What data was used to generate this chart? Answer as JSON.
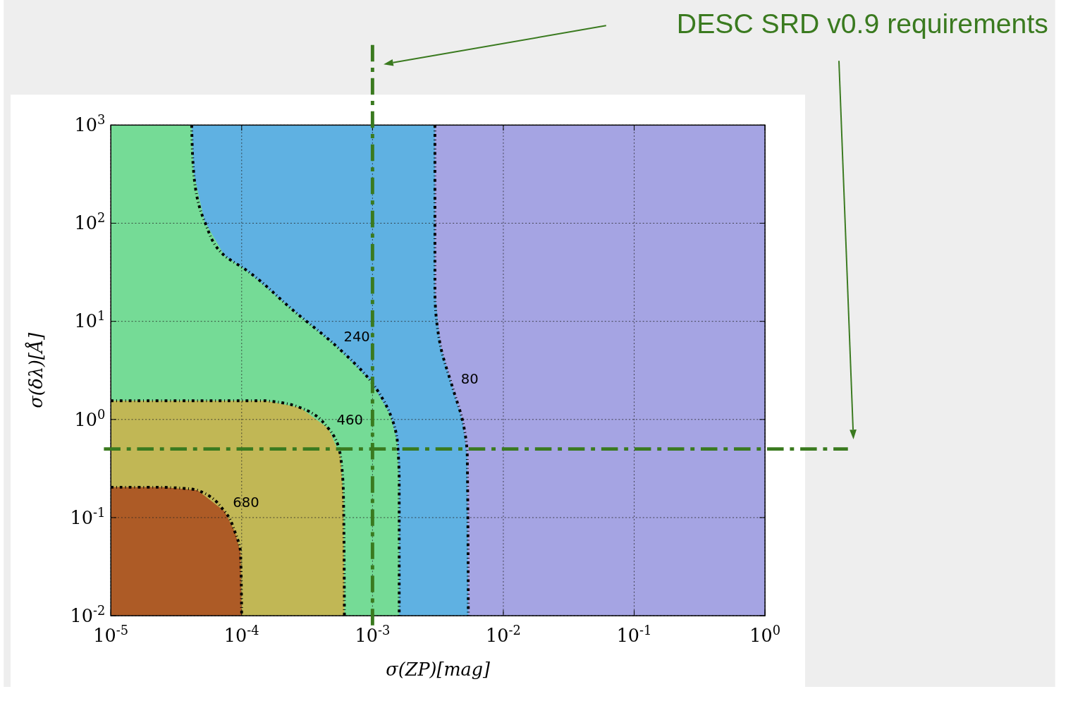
{
  "chart_data": {
    "type": "line",
    "xlabel": "σ(ZP)[mag]",
    "ylabel": "σ(δλ)[Å]",
    "log": "xy",
    "grid": true,
    "line_style": "dotted",
    "marker": "none",
    "xlim": [
      1e-05,
      1
    ],
    "ylim": [
      0.01,
      1000
    ],
    "xticks": [
      {
        "value": 1e-05,
        "label": "10$^{-5}$"
      },
      {
        "value": 0.0001,
        "label": "10$^{-4}$"
      },
      {
        "value": 0.001,
        "label": "10$^{-3}$"
      },
      {
        "value": 0.01,
        "label": "10$^{-2}$"
      },
      {
        "value": 0.1,
        "label": "10$^{-1}$"
      },
      {
        "value": 1,
        "label": "10$^{0}$"
      }
    ],
    "yticks": [
      {
        "value": 0.01,
        "label": "10$^{-2}$"
      },
      {
        "value": 0.1,
        "label": "10$^{-1}$"
      },
      {
        "value": 1,
        "label": "10$^{0}$"
      },
      {
        "value": 10,
        "label": "10$^{1}$"
      },
      {
        "value": 100,
        "label": "10$^{2}$"
      },
      {
        "value": 1000,
        "label": "10$^{3}$"
      }
    ],
    "series": [
      {
        "name": "80",
        "color": "#000000",
        "x": [
          0.003,
          0.003,
          0.0033,
          0.0041,
          0.0049,
          0.0053,
          0.0054
        ],
        "values": [
          1000,
          20.7,
          5.7,
          2.1,
          0.95,
          0.42,
          0.01
        ]
      },
      {
        "name": "240",
        "color": "#000000",
        "x": [
          4.15e-05,
          4.3e-05,
          5.2e-05,
          7.4e-05,
          0.000107,
          0.00025,
          0.00052,
          0.00096,
          0.00137,
          0.00155,
          0.0016,
          0.0016
        ],
        "values": [
          1000,
          327,
          105,
          46.7,
          33.7,
          12.8,
          5.7,
          2.5,
          1.12,
          0.59,
          0.22,
          0.01
        ]
      },
      {
        "name": "460",
        "color": "#000000",
        "x": [
          1e-05,
          0.000154,
          0.00028,
          0.00046,
          0.00057,
          0.0006,
          0.00061
        ],
        "values": [
          1.55,
          1.55,
          1.32,
          0.81,
          0.42,
          0.16,
          0.01
        ]
      },
      {
        "name": "680",
        "color": "#000000",
        "x": [
          1e-05,
          2.5e-05,
          4.6e-05,
          7.4e-05,
          8.9e-05,
          9.8e-05,
          0.0001
        ],
        "values": [
          0.204,
          0.204,
          0.19,
          0.116,
          0.071,
          0.044,
          0.01
        ]
      }
    ],
    "ref_lines": [
      {
        "axis": "x",
        "value": 0.001,
        "color": "#3a7a1f",
        "line_style": "dashed"
      },
      {
        "axis": "y",
        "value": 0.5,
        "color": "#3a7a1f",
        "line_style": "dashed"
      }
    ],
    "annotations": [
      "DESC SRD v0.9 requirements"
    ]
  }
}
